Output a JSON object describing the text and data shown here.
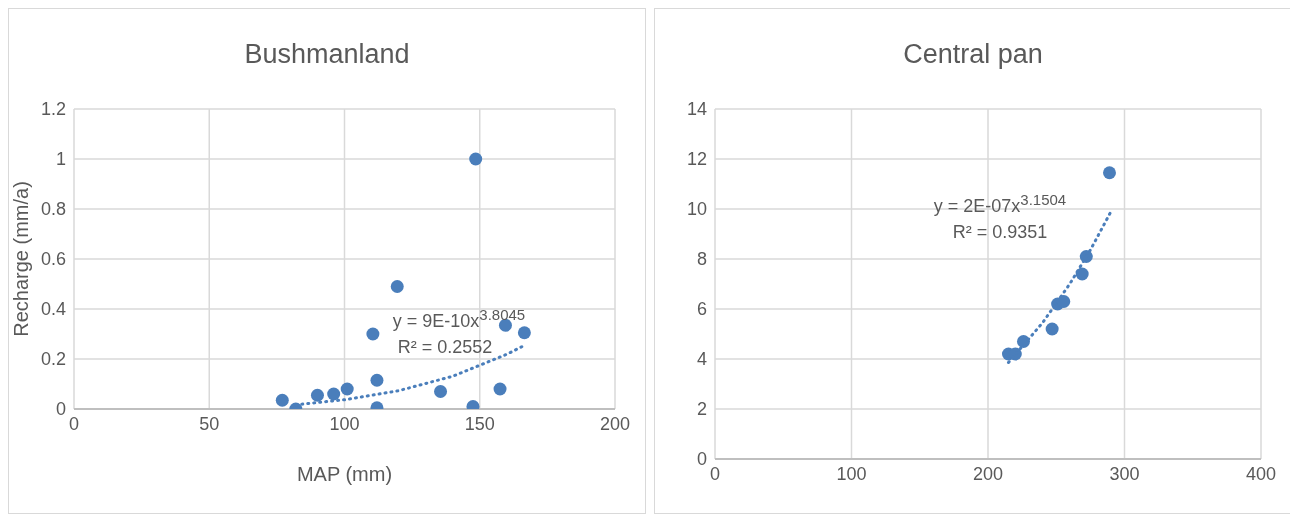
{
  "chart_data": [
    {
      "type": "scatter",
      "title": "Bushmanland",
      "xlabel": "MAP (mm)",
      "ylabel": "Recharge (mm/a)",
      "xlim": [
        0,
        200
      ],
      "xticks": [
        0,
        50,
        100,
        150,
        200
      ],
      "ylim": [
        0,
        1.2
      ],
      "yticks": [
        0,
        0.2,
        0.4,
        0.6,
        0.8,
        1,
        1.2
      ],
      "grid": true,
      "marker": "circle",
      "series": [
        {
          "color": "#4a7ebb",
          "x": [
            77,
            82,
            90,
            96,
            101,
            110.5,
            112,
            112,
            119.5,
            135.5,
            148.5,
            147.5,
            157.5,
            159.5,
            166.5
          ],
          "values": [
            0.035,
            0,
            0.055,
            0.06,
            0.08,
            0.3,
            0.115,
            0.005,
            0.49,
            0.07,
            1,
            0.01,
            0.08,
            0.335,
            0.305
          ]
        },
        {
          "type": "line",
          "color": "#4a7ebb",
          "line_style": "dotted",
          "marker": "none",
          "x": [
            82,
            100,
            120,
            140,
            160,
            167
          ],
          "values": [
            0.017,
            0.037,
            0.073,
            0.131,
            0.219,
            0.257
          ]
        }
      ],
      "annotations": [
        "y = 9E-10x$^{3.8045}$",
        "R² = 0.2552"
      ]
    },
    {
      "type": "scatter",
      "title": "Central pan",
      "xlim": [
        0,
        400
      ],
      "xticks": [
        0,
        100,
        200,
        300,
        400
      ],
      "ylim": [
        0,
        14
      ],
      "yticks": [
        0,
        2,
        4,
        6,
        8,
        10,
        12,
        14
      ],
      "grid": true,
      "marker": "circle",
      "series": [
        {
          "color": "#4a7ebb",
          "x": [
            215,
            220,
            226,
            247,
            251,
            255.5,
            269,
            272,
            289
          ],
          "values": [
            4.2,
            4.2,
            4.7,
            5.2,
            6.2,
            6.3,
            7.4,
            8.1,
            11.45
          ]
        },
        {
          "type": "line",
          "color": "#4a7ebb",
          "line_style": "dotted",
          "marker": "none",
          "x": [
            215,
            240,
            260,
            275,
            290
          ],
          "values": [
            3.86,
            5.45,
            7.01,
            8.36,
            9.89
          ]
        }
      ],
      "annotations": [
        "y = 2E-07x$^{3.1504}$",
        "R² = 0.9351"
      ]
    }
  ]
}
